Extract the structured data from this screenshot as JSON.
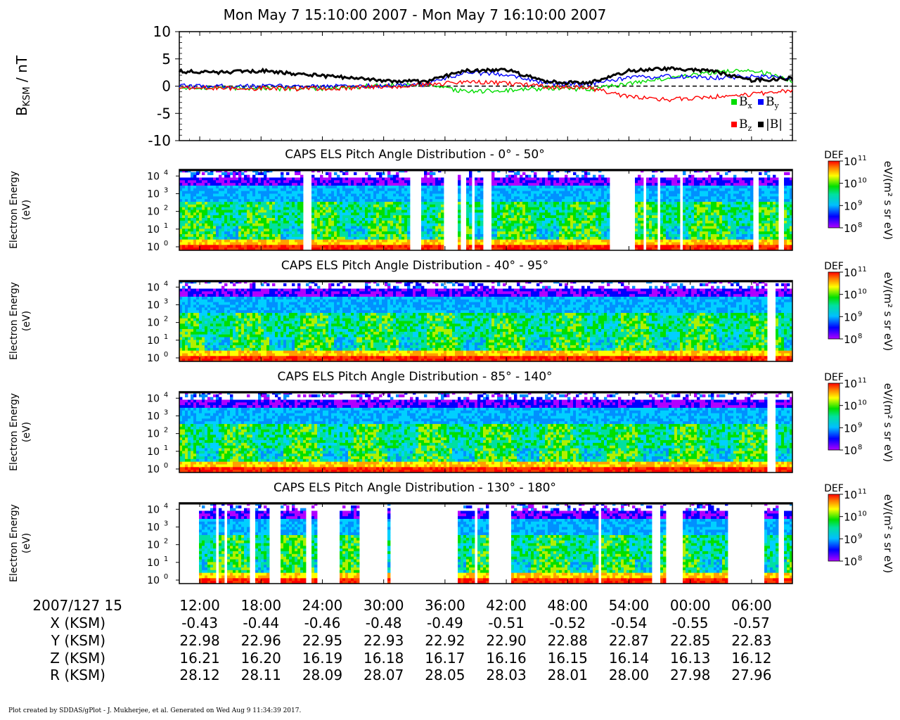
{
  "title": "Mon May 7 15:10:00 2007 - Mon May 7 16:10:00 2007",
  "footer": "Plot created by SDDAS/gPlot - J. Mukherjee, et al.  Generated on Wed Aug 9 11:34:39 2017.",
  "colors": {
    "bx": "#00dd00",
    "by": "#0000ff",
    "bz": "#ff0000",
    "bmag": "#000000"
  },
  "chart_data": [
    {
      "type": "line",
      "id": "magnetic-field",
      "ylabel_main": "B",
      "ylabel_sub": "KSM",
      "ylabel_unit": " / nT",
      "ylim": [
        -10,
        10
      ],
      "yticks": [
        "10",
        "5",
        "0",
        "-5",
        "-10"
      ],
      "yticks_values": [
        10,
        5,
        0,
        -5,
        -10
      ],
      "zero_line": "dashed",
      "x_minutes": [
        0,
        4,
        8,
        12,
        16,
        20,
        24,
        28,
        32,
        36,
        40,
        44,
        48,
        52,
        56,
        60
      ],
      "series": [
        {
          "name": "Bx",
          "name_main": "B",
          "name_sub": "x",
          "color": "#00dd00",
          "values": [
            -0.2,
            -0.3,
            -0.4,
            -0.5,
            -0.3,
            0.2,
            0.2,
            -1.0,
            -0.8,
            -0.4,
            -0.6,
            0.5,
            1.5,
            2.5,
            3.0,
            1.0
          ]
        },
        {
          "name": "By",
          "name_main": "B",
          "name_sub": "y",
          "color": "#0000ff",
          "values": [
            0.0,
            0.0,
            0.0,
            0.0,
            0.0,
            0.1,
            0.2,
            2.5,
            2.2,
            0.5,
            0.3,
            1.5,
            1.8,
            1.5,
            1.8,
            1.5
          ]
        },
        {
          "name": "Bz",
          "name_main": "B",
          "name_sub": "z",
          "color": "#ff0000",
          "values": [
            -0.3,
            -0.4,
            -0.4,
            -0.5,
            -0.4,
            -0.1,
            0.2,
            0.8,
            0.5,
            -0.1,
            -0.3,
            -2.0,
            -2.5,
            -2.0,
            -1.5,
            -0.8
          ]
        },
        {
          "name": "|B|",
          "name_main": "|B|",
          "name_sub": "",
          "color": "#000000",
          "values": [
            2.7,
            2.5,
            2.8,
            2.2,
            1.6,
            1.0,
            0.8,
            2.8,
            3.0,
            0.8,
            0.5,
            2.8,
            3.2,
            2.8,
            1.0,
            1.5
          ]
        }
      ]
    },
    {
      "type": "heatmap",
      "id": "pad-0-50",
      "title": "CAPS ELS Pitch Angle Distribution - 0° - 50°",
      "ylabel": [
        "Electron Energy",
        "(eV)"
      ],
      "yticks": [
        0,
        1,
        2,
        3,
        4
      ],
      "colorbar_label": "DEF",
      "colorbar_unit": "eV/(m² s sr eV)",
      "colorbar_ticks": [
        8,
        9,
        10,
        11
      ],
      "gaps": [
        [
          0.2,
          0.215
        ],
        [
          0.375,
          0.395
        ],
        [
          0.43,
          0.455
        ],
        [
          0.46,
          0.467
        ],
        [
          0.475,
          0.48
        ],
        [
          0.495,
          0.51
        ],
        [
          0.7,
          0.745
        ],
        [
          0.755,
          0.76
        ],
        [
          0.78,
          0.785
        ],
        [
          0.815,
          0.82
        ],
        [
          0.935,
          0.945
        ],
        [
          0.975,
          0.985
        ]
      ]
    },
    {
      "type": "heatmap",
      "id": "pad-40-95",
      "title": "CAPS ELS Pitch Angle Distribution - 40° - 95°",
      "ylabel": [
        "Electron Energy",
        "(eV)"
      ],
      "yticks": [
        0,
        1,
        2,
        3,
        4
      ],
      "colorbar_label": "DEF",
      "colorbar_unit": "eV/(m² s sr eV)",
      "colorbar_ticks": [
        8,
        9,
        10,
        11
      ],
      "gaps": [
        [
          0.958,
          0.972
        ]
      ]
    },
    {
      "type": "heatmap",
      "id": "pad-85-140",
      "title": "CAPS ELS Pitch Angle Distribution - 85° - 140°",
      "ylabel": [
        "Electron Energy",
        "(eV)"
      ],
      "yticks": [
        0,
        1,
        2,
        3,
        4
      ],
      "colorbar_label": "DEF",
      "colorbar_unit": "eV/(m² s sr eV)",
      "colorbar_ticks": [
        8,
        9,
        10,
        11
      ],
      "gaps": [
        [
          0.958,
          0.972
        ]
      ]
    },
    {
      "type": "heatmap",
      "id": "pad-130-180",
      "title": "CAPS ELS Pitch Angle Distribution - 130° - 180°",
      "ylabel": [
        "Electron Energy",
        "(eV)"
      ],
      "yticks": [
        0,
        1,
        2,
        3,
        4
      ],
      "colorbar_label": "DEF",
      "colorbar_unit": "eV/(m² s sr eV)",
      "colorbar_ticks": [
        8,
        9,
        10,
        11
      ],
      "gaps": [
        [
          0.0,
          0.03
        ],
        [
          0.06,
          0.065
        ],
        [
          0.075,
          0.08
        ],
        [
          0.115,
          0.125
        ],
        [
          0.145,
          0.165
        ],
        [
          0.205,
          0.215
        ],
        [
          0.225,
          0.26
        ],
        [
          0.295,
          0.34
        ],
        [
          0.345,
          0.455
        ],
        [
          0.48,
          0.485
        ],
        [
          0.505,
          0.54
        ],
        [
          0.685,
          0.69
        ],
        [
          0.77,
          0.785
        ],
        [
          0.795,
          0.8
        ],
        [
          0.8,
          0.82
        ],
        [
          0.895,
          0.955
        ],
        [
          0.975,
          0.985
        ]
      ]
    }
  ],
  "x_axis": {
    "date_label": "2007/127 15",
    "ticks": [
      "12:00",
      "18:00",
      "24:00",
      "30:00",
      "36:00",
      "42:00",
      "48:00",
      "54:00",
      "00:00",
      "06:00"
    ],
    "tick_minutes": [
      2,
      8,
      14,
      20,
      26,
      32,
      38,
      44,
      50,
      56
    ],
    "rows": [
      {
        "label": "X (KSM)",
        "values": [
          "-0.43",
          "-0.44",
          "-0.46",
          "-0.48",
          "-0.49",
          "-0.51",
          "-0.52",
          "-0.54",
          "-0.55",
          "-0.57"
        ]
      },
      {
        "label": "Y (KSM)",
        "values": [
          "22.98",
          "22.96",
          "22.95",
          "22.93",
          "22.92",
          "22.90",
          "22.88",
          "22.87",
          "22.85",
          "22.83"
        ]
      },
      {
        "label": "Z (KSM)",
        "values": [
          "16.21",
          "16.20",
          "16.19",
          "16.18",
          "16.17",
          "16.16",
          "16.15",
          "16.14",
          "16.13",
          "16.12"
        ]
      },
      {
        "label": "R (KSM)",
        "values": [
          "28.12",
          "28.11",
          "28.09",
          "28.07",
          "28.05",
          "28.03",
          "28.01",
          "28.00",
          "27.98",
          "27.96"
        ]
      }
    ]
  }
}
